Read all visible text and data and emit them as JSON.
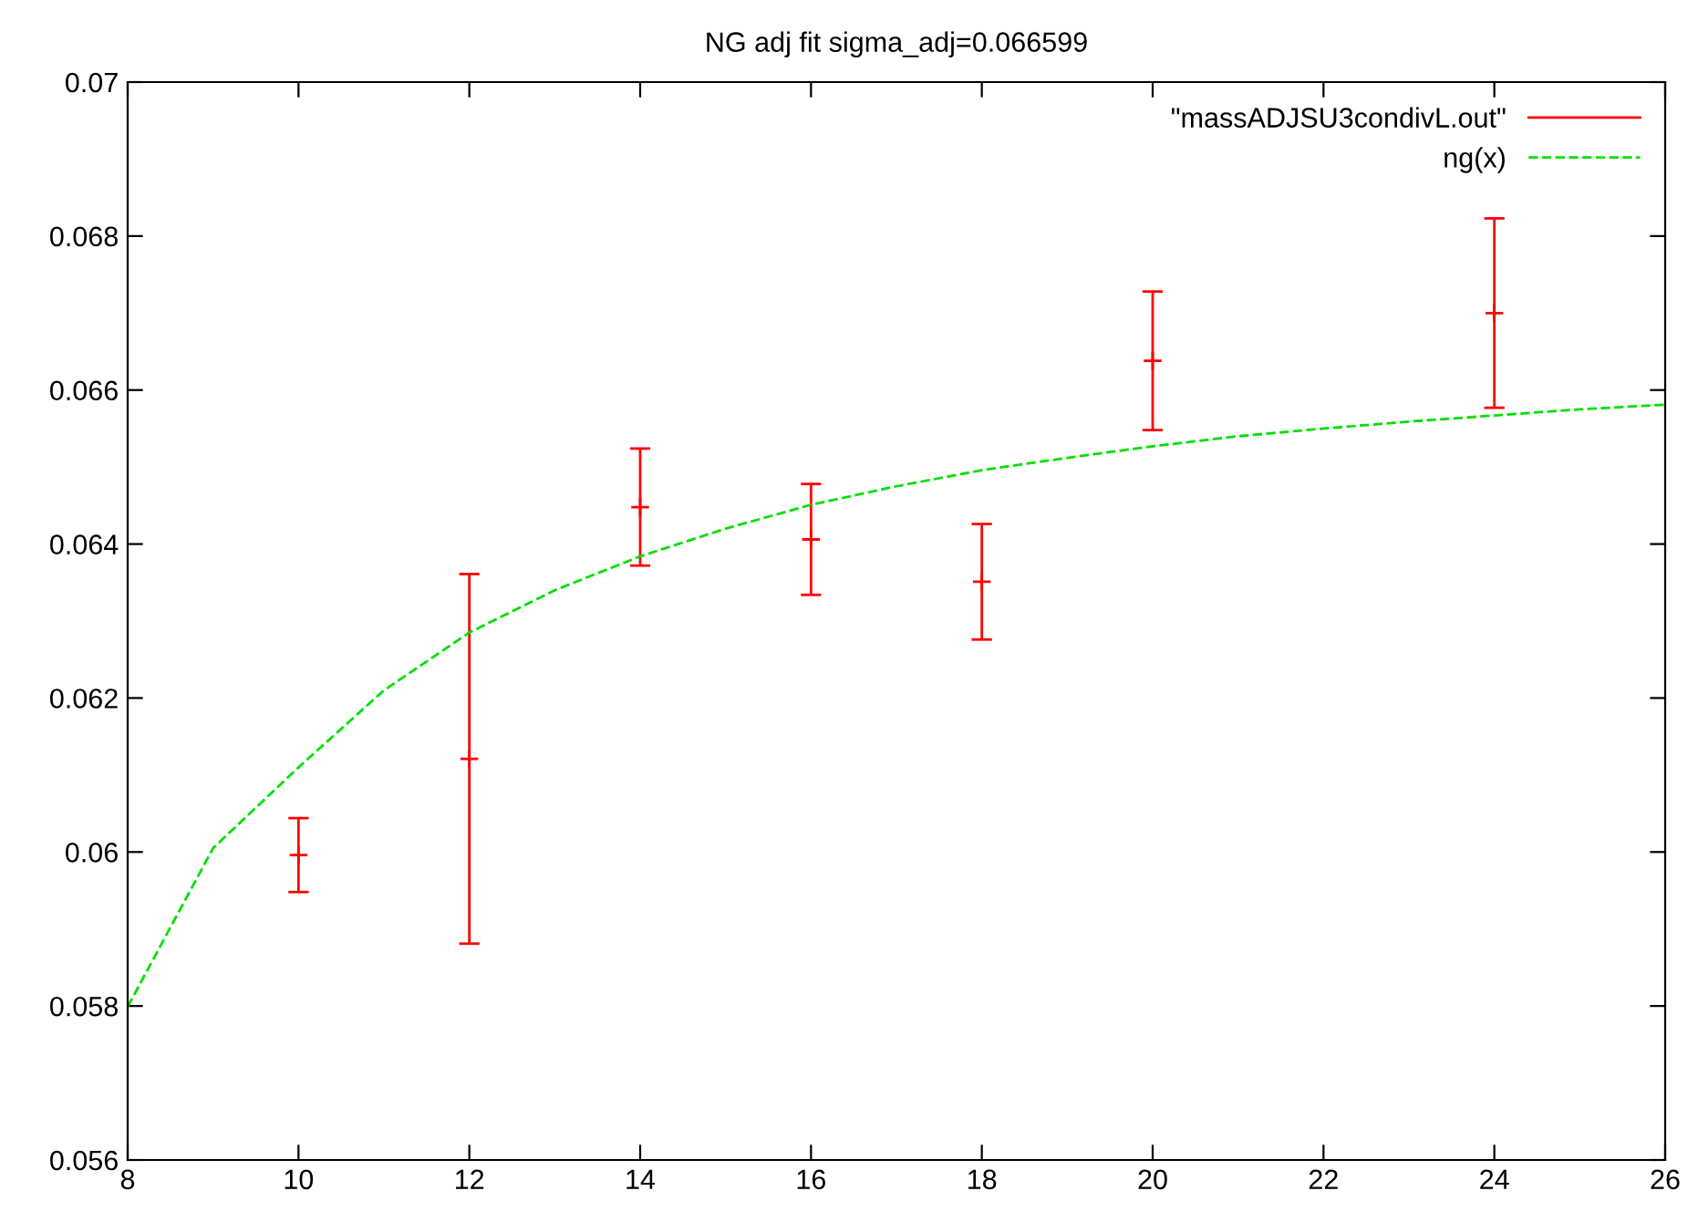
{
  "chart_data": {
    "type": "scatter",
    "title": "NG adj fit sigma_adj=0.066599",
    "xlim": [
      8,
      26
    ],
    "xticks": [
      8,
      10,
      12,
      14,
      16,
      18,
      20,
      22,
      24,
      26
    ],
    "ylim": [
      0.056,
      0.07
    ],
    "yticks": [
      0.056,
      0.058,
      {
        "value": 0.06,
        "label": "0.06"
      },
      0.062,
      0.064,
      0.066,
      0.068,
      0.07
    ],
    "grid": false,
    "legend": "top right",
    "series": [
      {
        "name": "\"massADJSU3condivL.out\"",
        "color": "#ff0000",
        "marker": "cross",
        "x": [
          10,
          12,
          14,
          16,
          18,
          20,
          24
        ],
        "values": [
          0.05996,
          0.06121,
          0.06448,
          0.06406,
          0.06351,
          0.06638,
          0.067
        ],
        "errors": [
          0.00048,
          0.0024,
          0.00076,
          0.00072,
          0.00075,
          0.0009,
          0.00123
        ]
      },
      {
        "name": "ng(x)",
        "type": "line",
        "color": "#00e000",
        "line_style": "dashed",
        "marker": "none",
        "x": [
          8,
          9,
          10,
          11,
          12,
          13,
          14,
          15,
          16,
          17,
          18,
          19,
          20,
          21,
          22,
          23,
          24,
          25,
          26
        ],
        "values": [
          0.05799,
          0.06005,
          0.0611,
          0.0621,
          0.06285,
          0.0634,
          0.06384,
          0.0642,
          0.06451,
          0.06475,
          0.06496,
          0.06512,
          0.06527,
          0.0654,
          0.0655,
          0.06559,
          0.06567,
          0.06575,
          0.06581
        ]
      }
    ]
  }
}
